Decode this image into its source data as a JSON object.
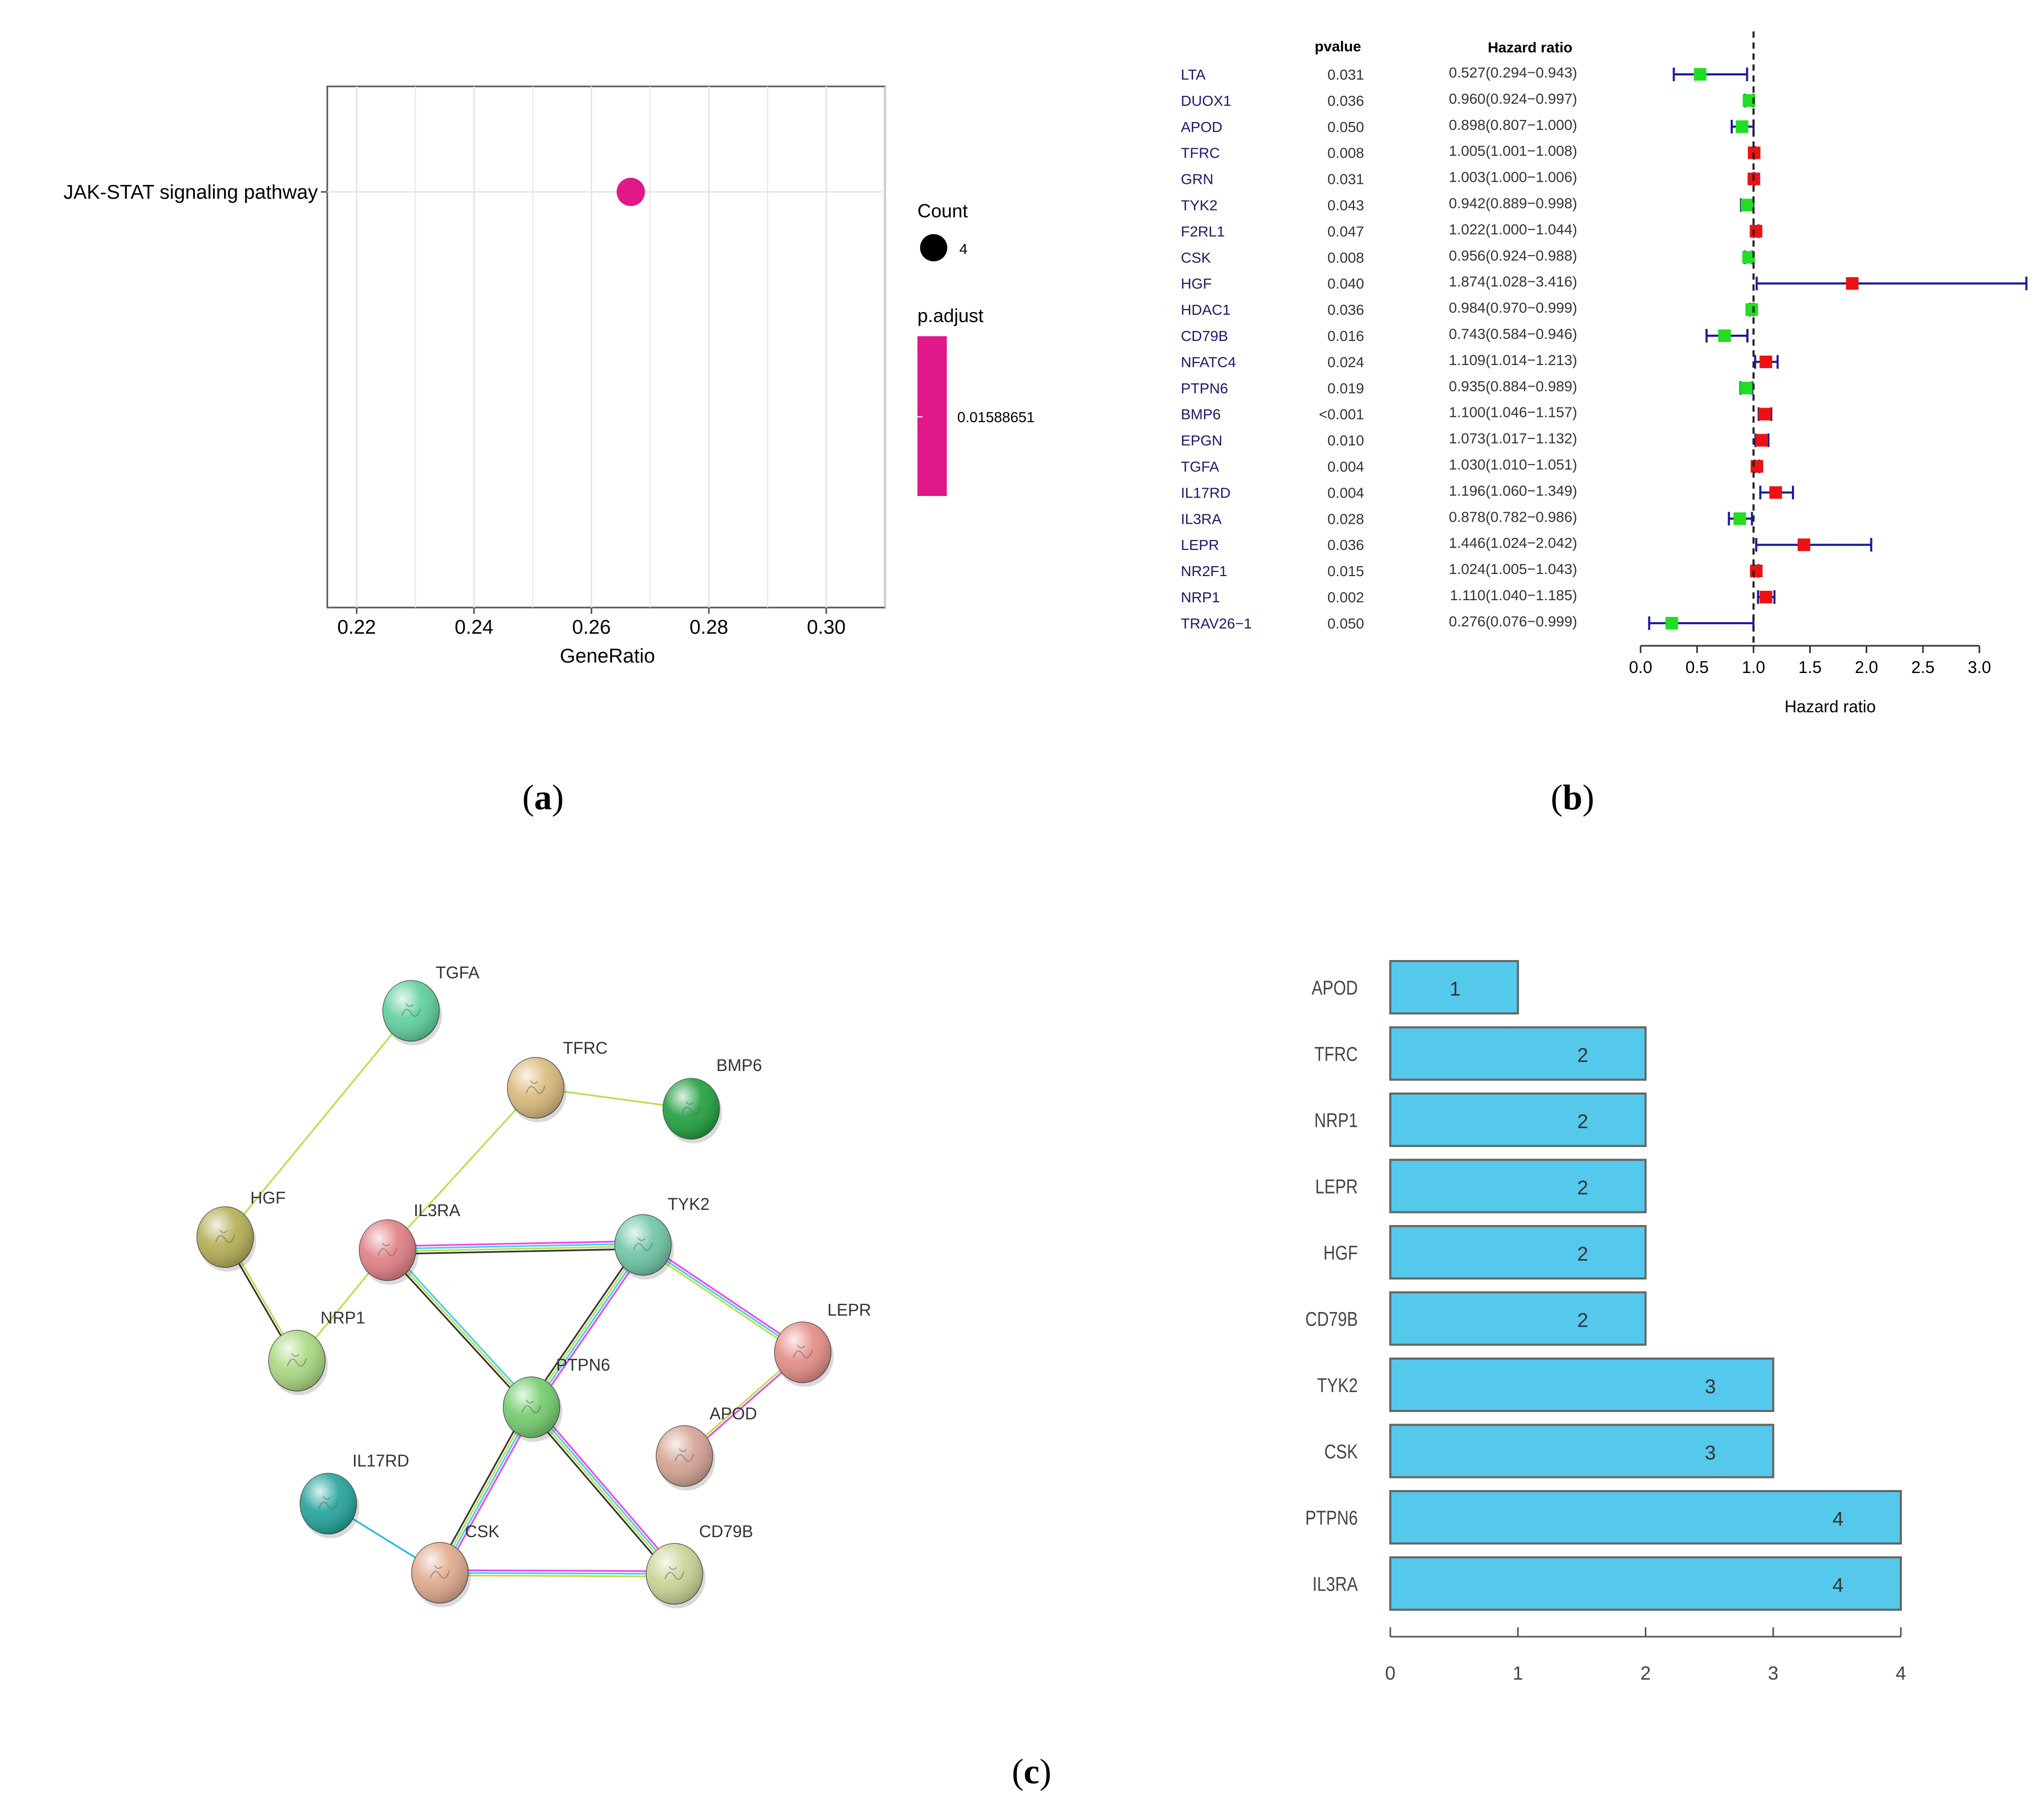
{
  "panel_labels": {
    "a": "(a)",
    "a_letter": "a",
    "b": "(b)",
    "b_letter": "b",
    "c": "(c)",
    "c_letter": "c"
  },
  "colors": {
    "dot": "#e0188a",
    "hr_up": "#ee1111",
    "hr_down": "#22dd22",
    "whisker": "#1a1a9a",
    "bar_fill": "#55c9ec",
    "bar_stroke": "#666666",
    "grid": "#e6e6e6"
  },
  "chart_data": [
    {
      "id": "a",
      "type": "scatter",
      "xlabel": "GeneRatio",
      "xlim": [
        0.215,
        0.31
      ],
      "xticks": [
        "0.22",
        "0.24",
        "0.26",
        "0.28",
        "0.30"
      ],
      "categories": [
        "JAK-STAT signaling pathway"
      ],
      "points": [
        {
          "term": "JAK-STAT signaling pathway",
          "gene_ratio": 0.2667,
          "count": 4,
          "p_adjust": 0.01588651
        }
      ],
      "legend": {
        "count_title": "Count",
        "count_value": "4",
        "padj_title": "p.adjust",
        "padj_value": "0.01588651"
      },
      "grid": true
    },
    {
      "id": "b",
      "type": "forest",
      "pvalue_header": "pvalue",
      "hr_header": "Hazard ratio",
      "xlabel": "Hazard ratio",
      "xlim": [
        0,
        3.0
      ],
      "xticks": [
        "0.0",
        "0.5",
        "1.0",
        "1.5",
        "2.0",
        "2.5",
        "3.0"
      ],
      "reference_line": 1.0,
      "rows": [
        {
          "gene": "LTA",
          "pvalue": "0.031",
          "hr_text": "0.527(0.294−0.943)",
          "hr": 0.527,
          "lo": 0.294,
          "hi": 0.943
        },
        {
          "gene": "DUOX1",
          "pvalue": "0.036",
          "hr_text": "0.960(0.924−0.997)",
          "hr": 0.96,
          "lo": 0.924,
          "hi": 0.997
        },
        {
          "gene": "APOD",
          "pvalue": "0.050",
          "hr_text": "0.898(0.807−1.000)",
          "hr": 0.898,
          "lo": 0.807,
          "hi": 1.0
        },
        {
          "gene": "TFRC",
          "pvalue": "0.008",
          "hr_text": "1.005(1.001−1.008)",
          "hr": 1.005,
          "lo": 1.001,
          "hi": 1.008
        },
        {
          "gene": "GRN",
          "pvalue": "0.031",
          "hr_text": "1.003(1.000−1.006)",
          "hr": 1.003,
          "lo": 1.0,
          "hi": 1.006
        },
        {
          "gene": "TYK2",
          "pvalue": "0.043",
          "hr_text": "0.942(0.889−0.998)",
          "hr": 0.942,
          "lo": 0.889,
          "hi": 0.998
        },
        {
          "gene": "F2RL1",
          "pvalue": "0.047",
          "hr_text": "1.022(1.000−1.044)",
          "hr": 1.022,
          "lo": 1.0,
          "hi": 1.044
        },
        {
          "gene": "CSK",
          "pvalue": "0.008",
          "hr_text": "0.956(0.924−0.988)",
          "hr": 0.956,
          "lo": 0.924,
          "hi": 0.988
        },
        {
          "gene": "HGF",
          "pvalue": "0.040",
          "hr_text": "1.874(1.028−3.416)",
          "hr": 1.874,
          "lo": 1.028,
          "hi": 3.416
        },
        {
          "gene": "HDAC1",
          "pvalue": "0.036",
          "hr_text": "0.984(0.970−0.999)",
          "hr": 0.984,
          "lo": 0.97,
          "hi": 0.999
        },
        {
          "gene": "CD79B",
          "pvalue": "0.016",
          "hr_text": "0.743(0.584−0.946)",
          "hr": 0.743,
          "lo": 0.584,
          "hi": 0.946
        },
        {
          "gene": "NFATC4",
          "pvalue": "0.024",
          "hr_text": "1.109(1.014−1.213)",
          "hr": 1.109,
          "lo": 1.014,
          "hi": 1.213
        },
        {
          "gene": "PTPN6",
          "pvalue": "0.019",
          "hr_text": "0.935(0.884−0.989)",
          "hr": 0.935,
          "lo": 0.884,
          "hi": 0.989
        },
        {
          "gene": "BMP6",
          "pvalue": "<0.001",
          "hr_text": "1.100(1.046−1.157)",
          "hr": 1.1,
          "lo": 1.046,
          "hi": 1.157
        },
        {
          "gene": "EPGN",
          "pvalue": "0.010",
          "hr_text": "1.073(1.017−1.132)",
          "hr": 1.073,
          "lo": 1.017,
          "hi": 1.132
        },
        {
          "gene": "TGFA",
          "pvalue": "0.004",
          "hr_text": "1.030(1.010−1.051)",
          "hr": 1.03,
          "lo": 1.01,
          "hi": 1.051
        },
        {
          "gene": "IL17RD",
          "pvalue": "0.004",
          "hr_text": "1.196(1.060−1.349)",
          "hr": 1.196,
          "lo": 1.06,
          "hi": 1.349
        },
        {
          "gene": "IL3RA",
          "pvalue": "0.028",
          "hr_text": "0.878(0.782−0.986)",
          "hr": 0.878,
          "lo": 0.782,
          "hi": 0.986
        },
        {
          "gene": "LEPR",
          "pvalue": "0.036",
          "hr_text": "1.446(1.024−2.042)",
          "hr": 1.446,
          "lo": 1.024,
          "hi": 2.042
        },
        {
          "gene": "NR2F1",
          "pvalue": "0.015",
          "hr_text": "1.024(1.005−1.043)",
          "hr": 1.024,
          "lo": 1.005,
          "hi": 1.043
        },
        {
          "gene": "NRP1",
          "pvalue": "0.002",
          "hr_text": "1.110(1.040−1.185)",
          "hr": 1.11,
          "lo": 1.04,
          "hi": 1.185
        },
        {
          "gene": "TRAV26−1",
          "pvalue": "0.050",
          "hr_text": "0.276(0.076−0.999)",
          "hr": 0.276,
          "lo": 0.076,
          "hi": 0.999
        }
      ]
    },
    {
      "id": "c-network",
      "type": "network",
      "nodes": [
        {
          "id": "TGFA",
          "label": "TGFA",
          "color": "#5ccf9c"
        },
        {
          "id": "TFRC",
          "label": "TFRC",
          "color": "#d9b97a"
        },
        {
          "id": "BMP6",
          "label": "BMP6",
          "color": "#1d9e3c"
        },
        {
          "id": "HGF",
          "label": "HGF",
          "color": "#b4ad52"
        },
        {
          "id": "IL3RA",
          "label": "IL3RA",
          "color": "#e07d82"
        },
        {
          "id": "TYK2",
          "label": "TYK2",
          "color": "#6cc5a4"
        },
        {
          "id": "NRP1",
          "label": "NRP1",
          "color": "#a8d87e"
        },
        {
          "id": "LEPR",
          "label": "LEPR",
          "color": "#e58b84"
        },
        {
          "id": "PTPN6",
          "label": "PTPN6",
          "color": "#6fcc6a"
        },
        {
          "id": "APOD",
          "label": "APOD",
          "color": "#d4a292"
        },
        {
          "id": "IL17RD",
          "label": "IL17RD",
          "color": "#1fa29a"
        },
        {
          "id": "CSK",
          "label": "CSK",
          "color": "#e0a88a"
        },
        {
          "id": "CD79B",
          "label": "CD79B",
          "color": "#c8d392"
        }
      ],
      "edges": [
        {
          "source": "TGFA",
          "target": "HGF",
          "colors": [
            "#b8e04a"
          ]
        },
        {
          "source": "TFRC",
          "target": "BMP6",
          "colors": [
            "#b8e04a"
          ]
        },
        {
          "source": "TFRC",
          "target": "IL3RA",
          "colors": [
            "#b8e04a"
          ]
        },
        {
          "source": "HGF",
          "target": "NRP1",
          "colors": [
            "#b8e04a",
            "#333333"
          ]
        },
        {
          "source": "IL3RA",
          "target": "NRP1",
          "colors": [
            "#b8e04a"
          ]
        },
        {
          "source": "IL3RA",
          "target": "TYK2",
          "colors": [
            "#ee44ee",
            "#44d0ee",
            "#b8e04a",
            "#333333"
          ]
        },
        {
          "source": "IL3RA",
          "target": "PTPN6",
          "colors": [
            "#44d0ee",
            "#b8e04a",
            "#333333"
          ]
        },
        {
          "source": "TYK2",
          "target": "PTPN6",
          "colors": [
            "#ee44ee",
            "#44d0ee",
            "#b8e04a",
            "#333333"
          ]
        },
        {
          "source": "TYK2",
          "target": "LEPR",
          "colors": [
            "#ee44ee",
            "#44d0ee",
            "#b8e04a"
          ]
        },
        {
          "source": "LEPR",
          "target": "APOD",
          "colors": [
            "#ee44ee",
            "#b8e04a"
          ]
        },
        {
          "source": "PTPN6",
          "target": "CSK",
          "colors": [
            "#ee44ee",
            "#44d0ee",
            "#b8e04a",
            "#333333"
          ]
        },
        {
          "source": "PTPN6",
          "target": "CD79B",
          "colors": [
            "#ee44ee",
            "#44d0ee",
            "#b8e04a",
            "#333333"
          ]
        },
        {
          "source": "CSK",
          "target": "CD79B",
          "colors": [
            "#ee44ee",
            "#44d0ee",
            "#b8e04a"
          ]
        },
        {
          "source": "IL17RD",
          "target": "CSK",
          "colors": [
            "#22bbdd"
          ]
        }
      ]
    },
    {
      "id": "c-bar",
      "type": "bar",
      "orientation": "horizontal",
      "categories": [
        "APOD",
        "TFRC",
        "NRP1",
        "LEPR",
        "HGF",
        "CD79B",
        "TYK2",
        "CSK",
        "PTPN6",
        "IL3RA"
      ],
      "values": [
        1,
        2,
        2,
        2,
        2,
        2,
        3,
        3,
        4,
        4
      ],
      "xlim": [
        0,
        4
      ],
      "xticks": [
        "0",
        "1",
        "2",
        "3",
        "4"
      ]
    }
  ]
}
